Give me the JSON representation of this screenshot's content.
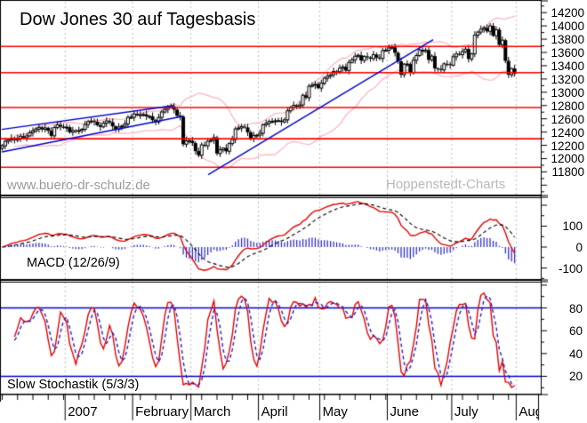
{
  "title": "Dow Jones 30 auf Tagesbasis",
  "watermarks": {
    "left": "www.buero-dr-schulz.de",
    "right": "Hoppenstedt-Charts"
  },
  "colors": {
    "resistance": "#ff0000",
    "trend": "#0000cc",
    "band": "#ffaab4",
    "grid": "#bcbcbc",
    "histogram": "#2222cc",
    "macd_line": "#e60000",
    "signal_line": "#000000",
    "stoch_k": "#e60000",
    "stoch_d": "#2222cc",
    "stoch_hline": "#0000cc",
    "axis": "#000000",
    "watermark_left": "#9b9b9b",
    "watermark_right": "#b9b9b9"
  },
  "x_axis": {
    "week_tick_step": 5,
    "months": [
      {
        "label": "2007",
        "start_index": 21
      },
      {
        "label": "February",
        "start_index": 43
      },
      {
        "label": "March",
        "start_index": 62
      },
      {
        "label": "April",
        "start_index": 84
      },
      {
        "label": "May",
        "start_index": 104
      },
      {
        "label": "June",
        "start_index": 126
      },
      {
        "label": "July",
        "start_index": 147
      },
      {
        "label": "Aug",
        "start_index": 168
      }
    ]
  },
  "chart_data": [
    {
      "type": "candlestick",
      "title": "Dow Jones 30 auf Tagesbasis",
      "ylim": [
        11444,
        14377
      ],
      "ylabels": [
        14200,
        14000,
        13800,
        13600,
        13400,
        13200,
        13000,
        12800,
        12600,
        12400,
        12200,
        12000,
        11800
      ],
      "ytick_minor_step": 100,
      "resistance_levels": [
        13690,
        13295,
        12770,
        12300,
        11870
      ],
      "trend_lines": [
        {
          "x1": 2,
          "v1": 12440,
          "x2": 196,
          "v2": 12800
        },
        {
          "x1": 2,
          "v1": 12100,
          "x2": 206,
          "v2": 12640
        },
        {
          "x1": 234,
          "v1": 11758,
          "x2": 487,
          "v2": 13792
        }
      ],
      "bollinger": {
        "period": 20,
        "stddev": 2
      },
      "closes": [
        12194,
        12260,
        12283,
        12309,
        12278,
        12307,
        12337,
        12315,
        12342,
        12390,
        12417,
        12445,
        12471,
        12441,
        12463,
        12421,
        12343,
        12468,
        12510,
        12481,
        12463,
        12474,
        12398,
        12423,
        12417,
        12424,
        12442,
        12514,
        12557,
        12566,
        12556,
        12502,
        12478,
        12533,
        12568,
        12549,
        12487,
        12441,
        12477,
        12490,
        12523,
        12621,
        12622,
        12673,
        12653,
        12661,
        12666,
        12637,
        12638,
        12580,
        12552,
        12620,
        12703,
        12741,
        12767,
        12787,
        12738,
        12647,
        12632,
        12216,
        12268,
        12269,
        12234,
        12114,
        12050,
        12207,
        12193,
        12261,
        12276,
        12318,
        12076,
        12133,
        12159,
        12110,
        12226,
        12288,
        12447,
        12461,
        12481,
        12469,
        12397,
        12300,
        12348,
        12354,
        12382,
        12510,
        12530,
        12560,
        12561,
        12569,
        12573,
        12552,
        12584,
        12720,
        12773,
        12803,
        12786,
        12808,
        12954,
        12919,
        13090,
        13106,
        13121,
        13063,
        13136,
        13212,
        13242,
        13264,
        13313,
        13309,
        13363,
        13383,
        13327,
        13449,
        13487,
        13543,
        13557,
        13479,
        13540,
        13525,
        13507,
        13567,
        13522,
        13508,
        13628,
        13633,
        13668,
        13677,
        13595,
        13465,
        13266,
        13424,
        13425,
        13295,
        13482,
        13553,
        13639,
        13613,
        13635,
        13489,
        13545,
        13360,
        13352,
        13337,
        13428,
        13422,
        13409,
        13535,
        13577,
        13566,
        13612,
        13650,
        13502,
        13578,
        13861,
        13907,
        13950,
        13971,
        13918,
        14000,
        13851,
        13943,
        13716,
        13785,
        13473,
        13265,
        13358,
        13280
      ]
    },
    {
      "type": "macd",
      "label": "MACD (12/26/9)",
      "fast": 12,
      "slow": 26,
      "signal": 9,
      "ylim": [
        -157,
        238
      ],
      "ylabels": [
        100,
        0,
        -100
      ],
      "ytick_minor_step": 50
    },
    {
      "type": "stochastic",
      "label": "Slow Stochastik (5/3/3)",
      "k": 5,
      "slowing": 3,
      "d": 3,
      "ylim": [
        4,
        103
      ],
      "ylabels": [
        80,
        60,
        40,
        20
      ],
      "hlines": [
        80,
        20
      ],
      "ytick_minor_step": 10
    }
  ]
}
